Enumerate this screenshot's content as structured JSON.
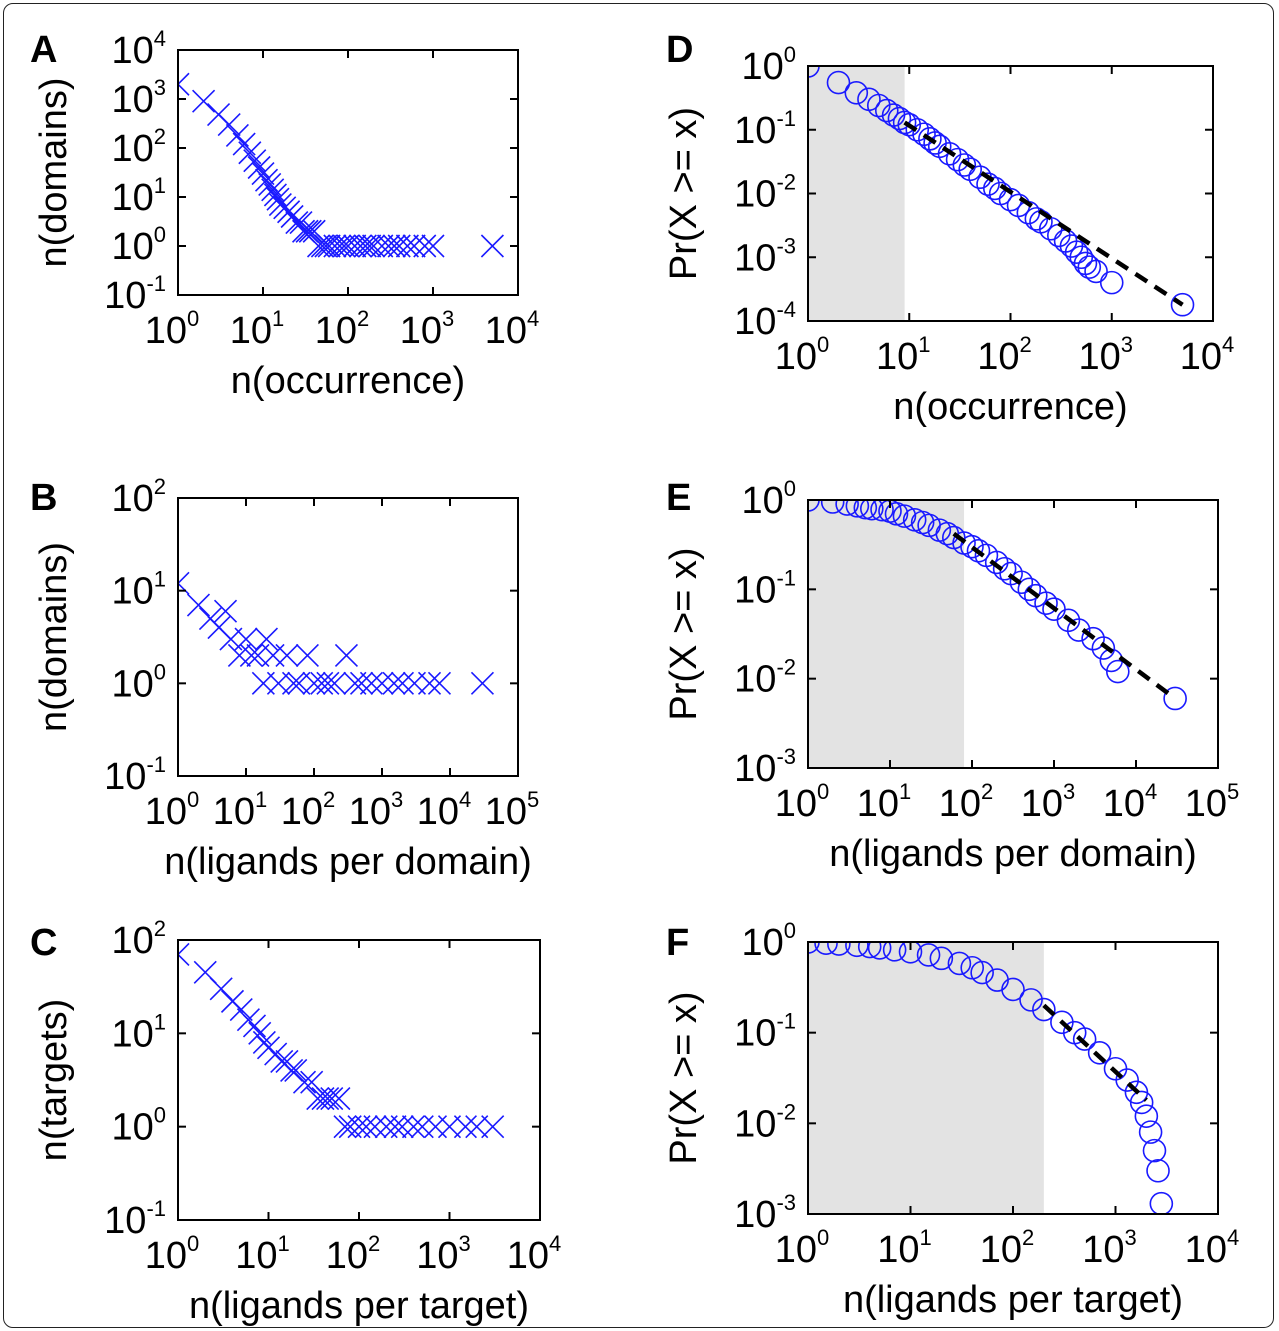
{
  "figure": {
    "colors": {
      "marker": "#1a1aff",
      "fit_line": "#000000",
      "shade": "#e3e3e3",
      "axis": "#000000"
    }
  },
  "chart_data": [
    {
      "id": "A",
      "type": "scatter",
      "marker": "x",
      "log_x": true,
      "log_y": true,
      "panel_label": "A",
      "xlabel": "n(occurrence)",
      "ylabel": "n(domains)",
      "xlim": [
        1,
        10000
      ],
      "ylim": [
        0.1,
        10000
      ],
      "xticks": [
        {
          "base": "10",
          "exp": "0"
        },
        {
          "base": "10",
          "exp": "1"
        },
        {
          "base": "10",
          "exp": "2"
        },
        {
          "base": "10",
          "exp": "3"
        },
        {
          "base": "10",
          "exp": "4"
        }
      ],
      "yticks": [
        {
          "base": "10",
          "exp": "-1"
        },
        {
          "base": "10",
          "exp": "0"
        },
        {
          "base": "10",
          "exp": "1"
        },
        {
          "base": "10",
          "exp": "2"
        },
        {
          "base": "10",
          "exp": "3"
        },
        {
          "base": "10",
          "exp": "4"
        }
      ],
      "x": [
        1,
        2,
        3,
        4,
        5,
        6,
        7,
        8,
        9,
        10,
        11,
        12,
        13,
        14,
        15,
        16,
        18,
        20,
        22,
        25,
        28,
        30,
        33,
        36,
        40,
        45,
        50,
        55,
        60,
        70,
        80,
        90,
        100,
        120,
        140,
        160,
        180,
        200,
        250,
        300,
        350,
        400,
        500,
        600,
        800,
        1000,
        5000
      ],
      "y": [
        2000,
        900,
        480,
        300,
        180,
        120,
        80,
        55,
        40,
        30,
        22,
        18,
        14,
        11,
        9,
        7,
        6,
        5,
        4,
        3,
        3,
        2,
        2,
        2,
        2,
        1,
        1,
        1,
        1,
        1,
        1,
        1,
        1,
        1,
        1,
        1,
        1,
        1,
        1,
        1,
        1,
        1,
        1,
        1,
        1,
        1,
        1
      ]
    },
    {
      "id": "B",
      "type": "scatter",
      "marker": "x",
      "log_x": true,
      "log_y": true,
      "panel_label": "B",
      "xlabel": "n(ligands per domain)",
      "ylabel": "n(domains)",
      "xlim": [
        1,
        100000
      ],
      "ylim": [
        0.1,
        100
      ],
      "xticks": [
        {
          "base": "10",
          "exp": "0"
        },
        {
          "base": "10",
          "exp": "1"
        },
        {
          "base": "10",
          "exp": "2"
        },
        {
          "base": "10",
          "exp": "3"
        },
        {
          "base": "10",
          "exp": "4"
        },
        {
          "base": "10",
          "exp": "5"
        }
      ],
      "yticks": [
        {
          "base": "10",
          "exp": "-1"
        },
        {
          "base": "10",
          "exp": "0"
        },
        {
          "base": "10",
          "exp": "1"
        },
        {
          "base": "10",
          "exp": "2"
        }
      ],
      "x": [
        1,
        2,
        3,
        4,
        5,
        6,
        8,
        10,
        12,
        15,
        18,
        20,
        25,
        30,
        40,
        50,
        60,
        80,
        100,
        130,
        160,
        200,
        300,
        400,
        500,
        700,
        1000,
        1500,
        2000,
        3000,
        5000,
        7000,
        30000
      ],
      "y": [
        12,
        7,
        5,
        4,
        6,
        3,
        2,
        3,
        2,
        2,
        1,
        3,
        2,
        1,
        2,
        1,
        1,
        2,
        1,
        1,
        1,
        1,
        2,
        1,
        1,
        1,
        1,
        1,
        1,
        1,
        1,
        1,
        1
      ]
    },
    {
      "id": "C",
      "type": "scatter",
      "marker": "x",
      "log_x": true,
      "log_y": true,
      "panel_label": "C",
      "xlabel": "n(ligands per target)",
      "ylabel": "n(targets)",
      "xlim": [
        1,
        10000
      ],
      "ylim": [
        0.1,
        100
      ],
      "xticks": [
        {
          "base": "10",
          "exp": "0"
        },
        {
          "base": "10",
          "exp": "1"
        },
        {
          "base": "10",
          "exp": "2"
        },
        {
          "base": "10",
          "exp": "3"
        },
        {
          "base": "10",
          "exp": "4"
        }
      ],
      "yticks": [
        {
          "base": "10",
          "exp": "-1"
        },
        {
          "base": "10",
          "exp": "0"
        },
        {
          "base": "10",
          "exp": "1"
        },
        {
          "base": "10",
          "exp": "2"
        }
      ],
      "x": [
        1,
        2,
        3,
        4,
        5,
        6,
        7,
        8,
        9,
        10,
        12,
        14,
        16,
        18,
        20,
        25,
        30,
        35,
        40,
        45,
        50,
        60,
        70,
        80,
        100,
        120,
        150,
        200,
        250,
        300,
        400,
        500,
        700,
        1000,
        1500,
        2000,
        3000
      ],
      "y": [
        70,
        45,
        30,
        22,
        18,
        14,
        12,
        10,
        8,
        7,
        6,
        5,
        5,
        4,
        4,
        3,
        3,
        2,
        2,
        2,
        2,
        2,
        1,
        1,
        1,
        1,
        1,
        1,
        1,
        1,
        1,
        1,
        1,
        1,
        1,
        1,
        1
      ]
    },
    {
      "id": "D",
      "type": "scatter",
      "marker": "o",
      "log_x": true,
      "log_y": true,
      "panel_label": "D",
      "xlabel": "n(occurrence)",
      "ylabel": "Pr(X >= x)",
      "xlim": [
        1,
        10000
      ],
      "ylim": [
        0.0001,
        1
      ],
      "xticks": [
        {
          "base": "10",
          "exp": "0"
        },
        {
          "base": "10",
          "exp": "1"
        },
        {
          "base": "10",
          "exp": "2"
        },
        {
          "base": "10",
          "exp": "3"
        },
        {
          "base": "10",
          "exp": "4"
        }
      ],
      "yticks": [
        {
          "base": "10",
          "exp": "-4"
        },
        {
          "base": "10",
          "exp": "-3"
        },
        {
          "base": "10",
          "exp": "-2"
        },
        {
          "base": "10",
          "exp": "-1"
        },
        {
          "base": "10",
          "exp": "0"
        }
      ],
      "shade_x": [
        1,
        9
      ],
      "fit_line": {
        "x": [
          9,
          5000
        ],
        "y": [
          0.13,
          0.00018
        ]
      },
      "x": [
        1,
        2,
        3,
        4,
        5,
        6,
        7,
        8,
        9,
        10,
        12,
        14,
        16,
        18,
        20,
        25,
        30,
        35,
        40,
        50,
        60,
        70,
        80,
        100,
        120,
        150,
        180,
        200,
        250,
        300,
        350,
        400,
        450,
        500,
        550,
        600,
        700,
        1000,
        5000
      ],
      "y": [
        1,
        0.55,
        0.38,
        0.3,
        0.24,
        0.2,
        0.17,
        0.15,
        0.13,
        0.12,
        0.1,
        0.085,
        0.072,
        0.062,
        0.055,
        0.042,
        0.034,
        0.028,
        0.024,
        0.018,
        0.014,
        0.012,
        0.01,
        0.008,
        0.0065,
        0.005,
        0.004,
        0.0036,
        0.0028,
        0.0022,
        0.0018,
        0.0015,
        0.0012,
        0.001,
        0.0008,
        0.0007,
        0.0006,
        0.0004,
        0.00018
      ]
    },
    {
      "id": "E",
      "type": "scatter",
      "marker": "o",
      "log_x": true,
      "log_y": true,
      "panel_label": "E",
      "xlabel": "n(ligands per domain)",
      "ylabel": "Pr(X >= x)",
      "xlim": [
        1,
        100000
      ],
      "ylim": [
        0.001,
        1
      ],
      "xticks": [
        {
          "base": "10",
          "exp": "0"
        },
        {
          "base": "10",
          "exp": "1"
        },
        {
          "base": "10",
          "exp": "2"
        },
        {
          "base": "10",
          "exp": "3"
        },
        {
          "base": "10",
          "exp": "4"
        },
        {
          "base": "10",
          "exp": "5"
        }
      ],
      "yticks": [
        {
          "base": "10",
          "exp": "-3"
        },
        {
          "base": "10",
          "exp": "-2"
        },
        {
          "base": "10",
          "exp": "-1"
        },
        {
          "base": "10",
          "exp": "0"
        }
      ],
      "shade_x": [
        1,
        80
      ],
      "fit_line": {
        "x": [
          60,
          30000
        ],
        "y": [
          0.42,
          0.006
        ]
      },
      "x": [
        1,
        2,
        3,
        4,
        5,
        6,
        8,
        10,
        12,
        15,
        20,
        25,
        30,
        40,
        50,
        60,
        80,
        100,
        120,
        150,
        200,
        250,
        300,
        400,
        500,
        600,
        800,
        1000,
        1500,
        2000,
        3000,
        4000,
        5000,
        6000,
        30000
      ],
      "y": [
        1,
        0.95,
        0.9,
        0.86,
        0.82,
        0.8,
        0.78,
        0.75,
        0.7,
        0.66,
        0.6,
        0.56,
        0.52,
        0.46,
        0.42,
        0.38,
        0.33,
        0.3,
        0.27,
        0.24,
        0.2,
        0.17,
        0.15,
        0.12,
        0.1,
        0.085,
        0.07,
        0.06,
        0.045,
        0.035,
        0.028,
        0.022,
        0.016,
        0.012,
        0.006
      ]
    },
    {
      "id": "F",
      "type": "scatter",
      "marker": "o",
      "log_x": true,
      "log_y": true,
      "panel_label": "F",
      "xlabel": "n(ligands per target)",
      "ylabel": "Pr(X >= x)",
      "xlim": [
        1,
        10000
      ],
      "ylim": [
        0.001,
        1
      ],
      "xticks": [
        {
          "base": "10",
          "exp": "0"
        },
        {
          "base": "10",
          "exp": "1"
        },
        {
          "base": "10",
          "exp": "2"
        },
        {
          "base": "10",
          "exp": "3"
        },
        {
          "base": "10",
          "exp": "4"
        }
      ],
      "yticks": [
        {
          "base": "10",
          "exp": "-3"
        },
        {
          "base": "10",
          "exp": "-2"
        },
        {
          "base": "10",
          "exp": "-1"
        },
        {
          "base": "10",
          "exp": "0"
        }
      ],
      "shade_x": [
        1,
        200
      ],
      "fit_line": {
        "x": [
          200,
          2000
        ],
        "y": [
          0.2,
          0.018
        ]
      },
      "x": [
        1,
        1.5,
        2,
        3,
        4,
        5,
        7,
        10,
        15,
        20,
        30,
        40,
        50,
        70,
        100,
        150,
        200,
        300,
        400,
        500,
        700,
        1000,
        1300,
        1600,
        1800,
        2000,
        2200,
        2400,
        2600,
        2800
      ],
      "y": [
        1,
        0.97,
        0.95,
        0.92,
        0.89,
        0.86,
        0.82,
        0.78,
        0.72,
        0.66,
        0.58,
        0.52,
        0.46,
        0.38,
        0.3,
        0.23,
        0.18,
        0.13,
        0.1,
        0.085,
        0.06,
        0.04,
        0.03,
        0.022,
        0.017,
        0.012,
        0.008,
        0.005,
        0.003,
        0.0013
      ]
    }
  ]
}
